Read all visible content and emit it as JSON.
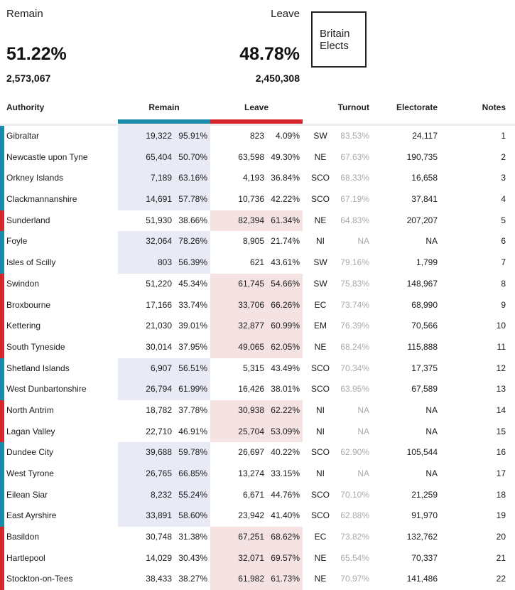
{
  "summary": {
    "remain": {
      "label": "Remain",
      "pct": "51.22%",
      "count": "2,573,067"
    },
    "leave": {
      "label": "Leave",
      "pct": "48.78%",
      "count": "2,450,308"
    }
  },
  "logo": {
    "line1": "Britain",
    "line2": "Elects"
  },
  "columns": {
    "authority": "Authority",
    "remain": "Remain",
    "leave": "Leave",
    "turnout": "Turnout",
    "electorate": "Electorate",
    "notes": "Notes"
  },
  "colors": {
    "remain": "#1a8aaa",
    "leave": "#d7262b",
    "remain_bg": "#e8ebf5",
    "leave_bg": "#f5e3e3"
  },
  "rows": [
    {
      "name": "Gibraltar",
      "remain_votes": "19,322",
      "remain_pct": "95.91%",
      "leave_votes": "823",
      "leave_pct": "4.09%",
      "region": "SW",
      "turnout": "83.53%",
      "electorate": "24,117",
      "note": "1",
      "winner": "remain"
    },
    {
      "name": "Newcastle upon Tyne",
      "remain_votes": "65,404",
      "remain_pct": "50.70%",
      "leave_votes": "63,598",
      "leave_pct": "49.30%",
      "region": "NE",
      "turnout": "67.63%",
      "electorate": "190,735",
      "note": "2",
      "winner": "remain"
    },
    {
      "name": "Orkney Islands",
      "remain_votes": "7,189",
      "remain_pct": "63.16%",
      "leave_votes": "4,193",
      "leave_pct": "36.84%",
      "region": "SCO",
      "turnout": "68.33%",
      "electorate": "16,658",
      "note": "3",
      "winner": "remain"
    },
    {
      "name": "Clackmannanshire",
      "remain_votes": "14,691",
      "remain_pct": "57.78%",
      "leave_votes": "10,736",
      "leave_pct": "42.22%",
      "region": "SCO",
      "turnout": "67.19%",
      "electorate": "37,841",
      "note": "4",
      "winner": "remain"
    },
    {
      "name": "Sunderland",
      "remain_votes": "51,930",
      "remain_pct": "38.66%",
      "leave_votes": "82,394",
      "leave_pct": "61.34%",
      "region": "NE",
      "turnout": "64.83%",
      "electorate": "207,207",
      "note": "5",
      "winner": "leave"
    },
    {
      "name": "Foyle",
      "remain_votes": "32,064",
      "remain_pct": "78.26%",
      "leave_votes": "8,905",
      "leave_pct": "21.74%",
      "region": "NI",
      "turnout": "NA",
      "electorate": "NA",
      "note": "6",
      "winner": "remain"
    },
    {
      "name": "Isles of Scilly",
      "remain_votes": "803",
      "remain_pct": "56.39%",
      "leave_votes": "621",
      "leave_pct": "43.61%",
      "region": "SW",
      "turnout": "79.16%",
      "electorate": "1,799",
      "note": "7",
      "winner": "remain"
    },
    {
      "name": "Swindon",
      "remain_votes": "51,220",
      "remain_pct": "45.34%",
      "leave_votes": "61,745",
      "leave_pct": "54.66%",
      "region": "SW",
      "turnout": "75.83%",
      "electorate": "148,967",
      "note": "8",
      "winner": "leave"
    },
    {
      "name": "Broxbourne",
      "remain_votes": "17,166",
      "remain_pct": "33.74%",
      "leave_votes": "33,706",
      "leave_pct": "66.26%",
      "region": "EC",
      "turnout": "73.74%",
      "electorate": "68,990",
      "note": "9",
      "winner": "leave"
    },
    {
      "name": "Kettering",
      "remain_votes": "21,030",
      "remain_pct": "39.01%",
      "leave_votes": "32,877",
      "leave_pct": "60.99%",
      "region": "EM",
      "turnout": "76.39%",
      "electorate": "70,566",
      "note": "10",
      "winner": "leave"
    },
    {
      "name": "South Tyneside",
      "remain_votes": "30,014",
      "remain_pct": "37.95%",
      "leave_votes": "49,065",
      "leave_pct": "62.05%",
      "region": "NE",
      "turnout": "68.24%",
      "electorate": "115,888",
      "note": "11",
      "winner": "leave"
    },
    {
      "name": "Shetland Islands",
      "remain_votes": "6,907",
      "remain_pct": "56.51%",
      "leave_votes": "5,315",
      "leave_pct": "43.49%",
      "region": "SCO",
      "turnout": "70.34%",
      "electorate": "17,375",
      "note": "12",
      "winner": "remain"
    },
    {
      "name": "West Dunbartonshire",
      "remain_votes": "26,794",
      "remain_pct": "61.99%",
      "leave_votes": "16,426",
      "leave_pct": "38.01%",
      "region": "SCO",
      "turnout": "63.95%",
      "electorate": "67,589",
      "note": "13",
      "winner": "remain"
    },
    {
      "name": "North Antrim",
      "remain_votes": "18,782",
      "remain_pct": "37.78%",
      "leave_votes": "30,938",
      "leave_pct": "62.22%",
      "region": "NI",
      "turnout": "NA",
      "electorate": "NA",
      "note": "14",
      "winner": "leave"
    },
    {
      "name": "Lagan Valley",
      "remain_votes": "22,710",
      "remain_pct": "46.91%",
      "leave_votes": "25,704",
      "leave_pct": "53.09%",
      "region": "NI",
      "turnout": "NA",
      "electorate": "NA",
      "note": "15",
      "winner": "leave"
    },
    {
      "name": "Dundee City",
      "remain_votes": "39,688",
      "remain_pct": "59.78%",
      "leave_votes": "26,697",
      "leave_pct": "40.22%",
      "region": "SCO",
      "turnout": "62.90%",
      "electorate": "105,544",
      "note": "16",
      "winner": "remain"
    },
    {
      "name": "West Tyrone",
      "remain_votes": "26,765",
      "remain_pct": "66.85%",
      "leave_votes": "13,274",
      "leave_pct": "33.15%",
      "region": "NI",
      "turnout": "NA",
      "electorate": "NA",
      "note": "17",
      "winner": "remain"
    },
    {
      "name": "Eilean Siar",
      "remain_votes": "8,232",
      "remain_pct": "55.24%",
      "leave_votes": "6,671",
      "leave_pct": "44.76%",
      "region": "SCO",
      "turnout": "70.10%",
      "electorate": "21,259",
      "note": "18",
      "winner": "remain"
    },
    {
      "name": "East Ayrshire",
      "remain_votes": "33,891",
      "remain_pct": "58.60%",
      "leave_votes": "23,942",
      "leave_pct": "41.40%",
      "region": "SCO",
      "turnout": "62.88%",
      "electorate": "91,970",
      "note": "19",
      "winner": "remain"
    },
    {
      "name": "Basildon",
      "remain_votes": "30,748",
      "remain_pct": "31.38%",
      "leave_votes": "67,251",
      "leave_pct": "68.62%",
      "region": "EC",
      "turnout": "73.82%",
      "electorate": "132,762",
      "note": "20",
      "winner": "leave"
    },
    {
      "name": "Hartlepool",
      "remain_votes": "14,029",
      "remain_pct": "30.43%",
      "leave_votes": "32,071",
      "leave_pct": "69.57%",
      "region": "NE",
      "turnout": "65.54%",
      "electorate": "70,337",
      "note": "21",
      "winner": "leave"
    },
    {
      "name": "Stockton-on-Tees",
      "remain_votes": "38,433",
      "remain_pct": "38.27%",
      "leave_votes": "61,982",
      "leave_pct": "61.73%",
      "region": "NE",
      "turnout": "70.97%",
      "electorate": "141,486",
      "note": "22",
      "winner": "leave"
    }
  ]
}
